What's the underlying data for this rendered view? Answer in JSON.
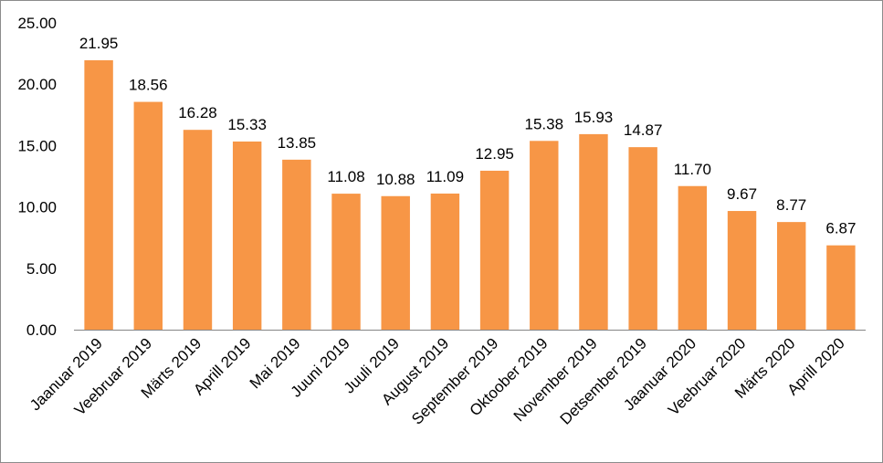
{
  "chart_data": {
    "type": "bar",
    "categories": [
      "Jaanuar 2019",
      "Veebruar 2019",
      "Märts 2019",
      "Aprill 2019",
      "Mai 2019",
      "Juuni 2019",
      "Juuli 2019",
      "August 2019",
      "September 2019",
      "Oktoober 2019",
      "November 2019",
      "Detsember 2019",
      "Jaanuar 2020",
      "Veebruar 2020",
      "Märts 2020",
      "Aprill 2020"
    ],
    "values": [
      21.95,
      18.56,
      16.28,
      15.33,
      13.85,
      11.08,
      10.88,
      11.09,
      12.95,
      15.38,
      15.93,
      14.87,
      11.7,
      9.67,
      8.77,
      6.87
    ],
    "data_labels": [
      "21.95",
      "18.56",
      "16.28",
      "15.33",
      "13.85",
      "11.08",
      "10.88",
      "11.09",
      "12.95",
      "15.38",
      "15.93",
      "14.87",
      "11.70",
      "9.67",
      "8.77",
      "6.87"
    ],
    "yticks": [
      "0.00",
      "5.00",
      "10.00",
      "15.00",
      "20.00",
      "25.00"
    ],
    "ylim": [
      0,
      25
    ],
    "bar_color": "#f79646",
    "axis_color": "#868686",
    "grid": false,
    "legend": "none",
    "title": "",
    "xlabel": "",
    "ylabel": ""
  }
}
